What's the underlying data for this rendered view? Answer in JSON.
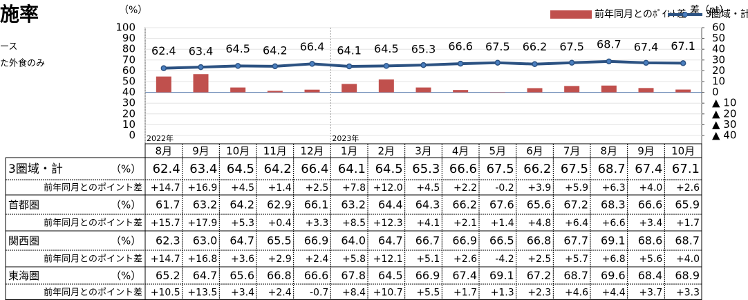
{
  "header": {
    "title": "施率",
    "notes": [
      "ース",
      "た外食のみ"
    ]
  },
  "chart_data": {
    "type": "bar-line",
    "y_label": "（%）",
    "y2_label": "差（pt）",
    "categories": [
      "8月",
      "9月",
      "10月",
      "11月",
      "12月",
      "1月",
      "2月",
      "3月",
      "4月",
      "5月",
      "6月",
      "7月",
      "8月",
      "9月",
      "10月"
    ],
    "years": [
      "2022年",
      null,
      null,
      null,
      null,
      "2023年",
      null,
      null,
      null,
      null,
      null,
      null,
      null,
      null,
      null
    ],
    "ylim": [
      0,
      100
    ],
    "yticks": [
      0,
      10,
      20,
      30,
      40,
      50,
      60,
      70,
      80,
      90,
      100
    ],
    "y2lim": [
      -40,
      60
    ],
    "y2ticks": [
      {
        "value": -40,
        "label": "▲ 40"
      },
      {
        "value": -30,
        "label": "▲ 30"
      },
      {
        "value": -20,
        "label": "▲ 20"
      },
      {
        "value": -10,
        "label": "▲ 10"
      },
      0,
      10,
      20,
      30,
      40,
      50,
      60
    ],
    "grid": true,
    "series": [
      {
        "name": "前年同月とのﾎﾟｲﾝﾄ差",
        "kind": "bar",
        "axis": "y2",
        "color": "#c0504d",
        "values": [
          14.7,
          16.9,
          4.5,
          1.4,
          2.5,
          7.8,
          12.0,
          4.5,
          2.2,
          -0.2,
          3.9,
          5.9,
          6.3,
          4.0,
          2.6
        ]
      },
      {
        "name": "3圏域・計",
        "kind": "line",
        "color": "#2c5282",
        "values": [
          62.4,
          63.4,
          64.5,
          64.2,
          66.4,
          64.1,
          64.5,
          65.3,
          66.6,
          67.5,
          66.2,
          67.5,
          68.7,
          67.4,
          67.1
        ]
      }
    ]
  },
  "table": {
    "rows": [
      {
        "label": "3圏域・計",
        "unit": "（%）",
        "values": [
          "62.4",
          "63.4",
          "64.5",
          "64.2",
          "66.4",
          "64.1",
          "64.5",
          "65.3",
          "66.6",
          "67.5",
          "66.2",
          "67.5",
          "68.7",
          "67.4",
          "67.1"
        ]
      },
      {
        "label": "前年同月とのポイント差",
        "values": [
          "+14.7",
          "+16.9",
          "+4.5",
          "+1.4",
          "+2.5",
          "+7.8",
          "+12.0",
          "+4.5",
          "+2.2",
          "-0.2",
          "+3.9",
          "+5.9",
          "+6.3",
          "+4.0",
          "+2.6"
        ]
      },
      {
        "label": "首都圏",
        "unit": "（%）",
        "values": [
          "61.7",
          "63.2",
          "64.2",
          "62.9",
          "66.1",
          "63.2",
          "64.4",
          "64.3",
          "66.2",
          "67.6",
          "65.6",
          "67.2",
          "68.3",
          "66.6",
          "65.9"
        ]
      },
      {
        "label": "前年同月とのポイント差",
        "values": [
          "+15.7",
          "+17.9",
          "+5.3",
          "+0.4",
          "+3.3",
          "+8.5",
          "+12.3",
          "+4.1",
          "+2.1",
          "+1.4",
          "+4.8",
          "+6.4",
          "+6.6",
          "+3.4",
          "+1.7"
        ]
      },
      {
        "label": "関西圏",
        "unit": "（%）",
        "values": [
          "62.3",
          "63.0",
          "64.7",
          "65.5",
          "66.9",
          "64.0",
          "64.7",
          "66.7",
          "66.9",
          "66.5",
          "66.8",
          "67.7",
          "69.1",
          "68.6",
          "68.7"
        ]
      },
      {
        "label": "前年同月とのポイント差",
        "values": [
          "+14.7",
          "+16.8",
          "+3.6",
          "+2.9",
          "+2.4",
          "+5.8",
          "+12.1",
          "+5.1",
          "+2.6",
          "-4.2",
          "+2.5",
          "+5.7",
          "+6.8",
          "+5.6",
          "+4.0"
        ]
      },
      {
        "label": "東海圏",
        "unit": "（%）",
        "values": [
          "65.2",
          "64.7",
          "65.6",
          "66.8",
          "66.6",
          "67.8",
          "64.5",
          "66.9",
          "67.4",
          "69.1",
          "67.2",
          "68.7",
          "69.6",
          "68.4",
          "68.9"
        ]
      },
      {
        "label": "前年同月とのポイント差",
        "values": [
          "+10.5",
          "+13.5",
          "+3.4",
          "+2.4",
          "-0.7",
          "+8.4",
          "+10.7",
          "+5.5",
          "+1.7",
          "+1.3",
          "+2.3",
          "+4.6",
          "+4.4",
          "+3.7",
          "+3.3"
        ]
      }
    ]
  }
}
